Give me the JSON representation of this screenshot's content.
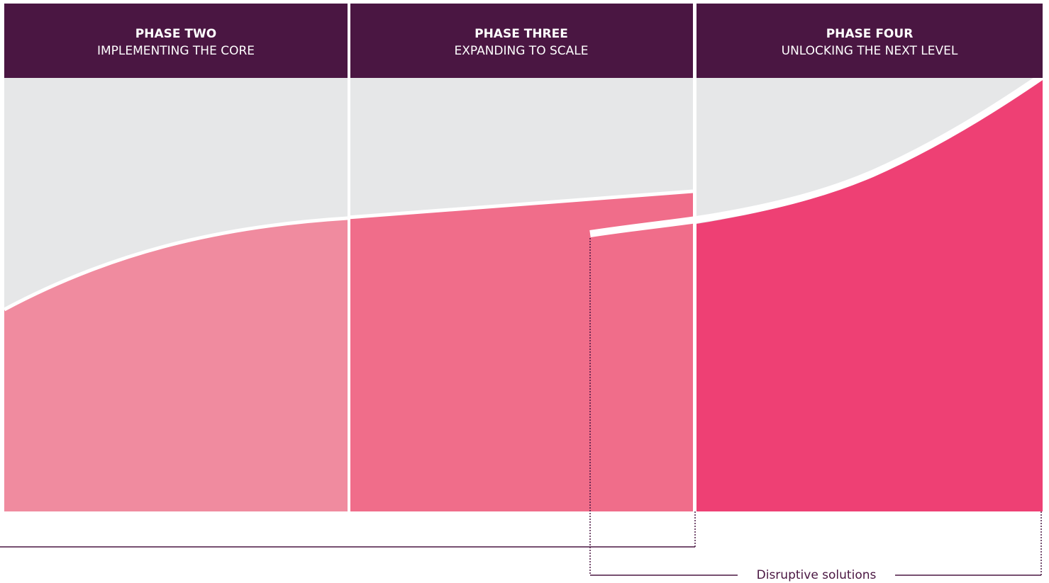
{
  "phases": [
    {
      "title": "PHASE TWO",
      "subtitle": "IMPLEMENTING THE CORE"
    },
    {
      "title": "PHASE THREE",
      "subtitle": "EXPANDING TO SCALE"
    },
    {
      "title": "PHASE FOUR",
      "subtitle": "UNLOCKING THE NEXT LEVEL"
    }
  ],
  "annotation": "Disruptive solutions"
}
